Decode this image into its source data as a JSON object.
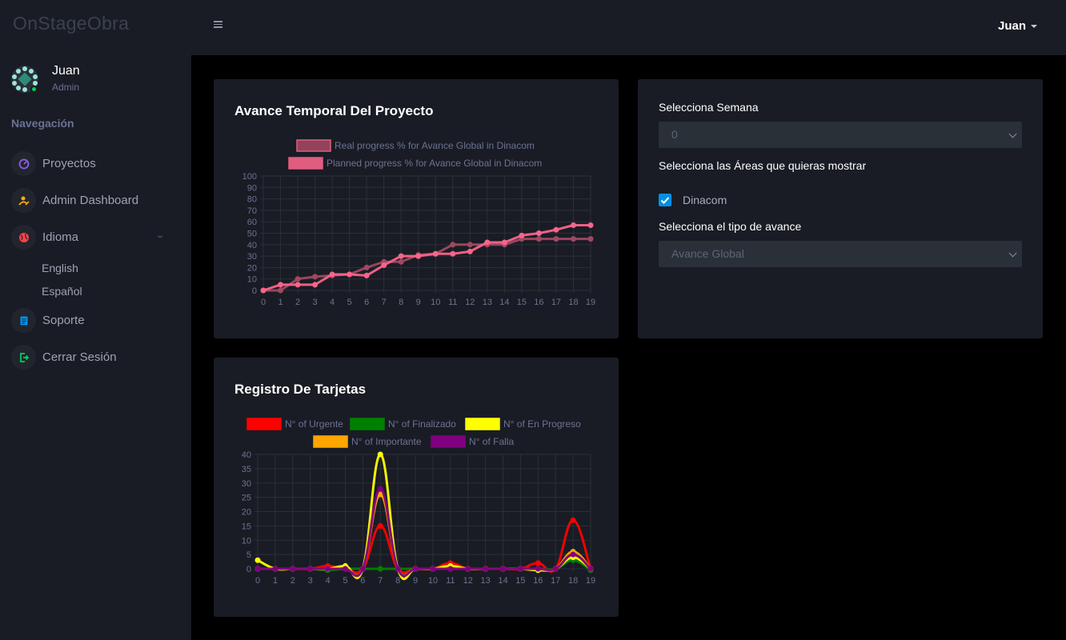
{
  "brand": "OnStageObra",
  "profile": {
    "name": "Juan",
    "role": "Admin"
  },
  "nav": {
    "title": "Navegación",
    "items": [
      {
        "label": "Proyectos",
        "icon": "speedometer-icon",
        "color": "#8f5fe8"
      },
      {
        "label": "Admin Dashboard",
        "icon": "user-edit-icon",
        "color": "#ffab00"
      },
      {
        "label": "Idioma",
        "icon": "globe-icon",
        "color": "#fc424a"
      },
      {
        "label": "Soporte",
        "icon": "document-icon",
        "color": "#0090e7"
      },
      {
        "label": "Cerrar Sesión",
        "icon": "logout-icon",
        "color": "#00d25b"
      }
    ],
    "language_sub": [
      "English",
      "Español"
    ]
  },
  "topbar": {
    "user": "Juan"
  },
  "progress_card": {
    "title": "Avance Temporal Del Proyecto"
  },
  "cards_card": {
    "title": "Registro De Tarjetas"
  },
  "filters": {
    "week_label": "Selecciona Semana",
    "week_value": "0",
    "areas_label": "Selecciona las Áreas que quieras mostrar",
    "area_option": "Dinacom",
    "area_checked": true,
    "type_label": "Selecciona el tipo de avance",
    "type_value": "Avance Global"
  },
  "chart_data": [
    {
      "type": "line",
      "title": "Avance Temporal Del Proyecto",
      "x": [
        0,
        1,
        2,
        3,
        4,
        5,
        6,
        7,
        8,
        9,
        10,
        11,
        12,
        13,
        14,
        15,
        16,
        17,
        18,
        19
      ],
      "ylim": [
        0,
        100
      ],
      "yticks": [
        0,
        10,
        20,
        30,
        40,
        50,
        60,
        70,
        80,
        90,
        100
      ],
      "legend_position": "top",
      "grid": true,
      "series": [
        {
          "name": "Real progress % for Avance Global in Dinacom",
          "color": "#a04862",
          "values": [
            0,
            0,
            10,
            12,
            13,
            14,
            20,
            25,
            25,
            31,
            32,
            40,
            40,
            40,
            40,
            45,
            45,
            45,
            45,
            45
          ]
        },
        {
          "name": "Planned progress % for Avance Global in Dinacom",
          "color": "#f7658b",
          "values": [
            0,
            5,
            5,
            5,
            14,
            14,
            13,
            22,
            30,
            30,
            32,
            32,
            34,
            42,
            42,
            48,
            50,
            53,
            57,
            57
          ]
        }
      ]
    },
    {
      "type": "line",
      "title": "Registro De Tarjetas",
      "x": [
        0,
        1,
        2,
        3,
        4,
        5,
        6,
        7,
        8,
        9,
        10,
        11,
        12,
        13,
        14,
        15,
        16,
        17,
        18,
        19
      ],
      "ylim": [
        0,
        40
      ],
      "yticks": [
        0,
        5,
        10,
        15,
        20,
        25,
        30,
        35,
        40
      ],
      "legend_position": "top",
      "grid": true,
      "series": [
        {
          "name": "N° of Urgente",
          "color": "#ff0000",
          "values": [
            0,
            0,
            0,
            0,
            1,
            0,
            0,
            15,
            0,
            0,
            0,
            2,
            0,
            0,
            0,
            0,
            2,
            0,
            17,
            0
          ]
        },
        {
          "name": "N° of  Finalizado",
          "color": "#008000",
          "values": [
            0,
            0,
            0,
            0,
            -0.5,
            0,
            0,
            0,
            0,
            0,
            0,
            1,
            0,
            0,
            0,
            0,
            0,
            0,
            3,
            -0.5
          ]
        },
        {
          "name": "N° of  En Progreso",
          "color": "#ffff00",
          "values": [
            3,
            0,
            0,
            0,
            0,
            1,
            0,
            40,
            0,
            0,
            0,
            1,
            0,
            0,
            0,
            0,
            -0.5,
            0,
            4,
            0
          ]
        },
        {
          "name": "N° of  Importante",
          "color": "#ffa500",
          "values": [
            0,
            0,
            0,
            0,
            0,
            0,
            0,
            26,
            0,
            0,
            0,
            0,
            0,
            0,
            0,
            0,
            0,
            0,
            6,
            0
          ]
        },
        {
          "name": "N° of  Falla",
          "color": "#800080",
          "values": [
            0,
            0,
            0,
            0,
            0,
            0,
            0,
            28,
            0,
            0,
            0,
            0,
            0,
            0,
            0,
            0,
            0,
            0,
            5,
            0
          ]
        }
      ]
    }
  ]
}
